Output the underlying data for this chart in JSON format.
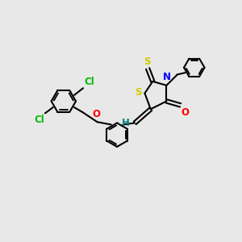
{
  "background_color": "#e8e8e8",
  "line_color": "#000000",
  "bond_width": 1.5,
  "atom_colors": {
    "S": "#cccc00",
    "N": "#0000ff",
    "O": "#ff0000",
    "Cl": "#00bb00",
    "H": "#008080",
    "C": "#000000"
  },
  "font_size": 8.5
}
